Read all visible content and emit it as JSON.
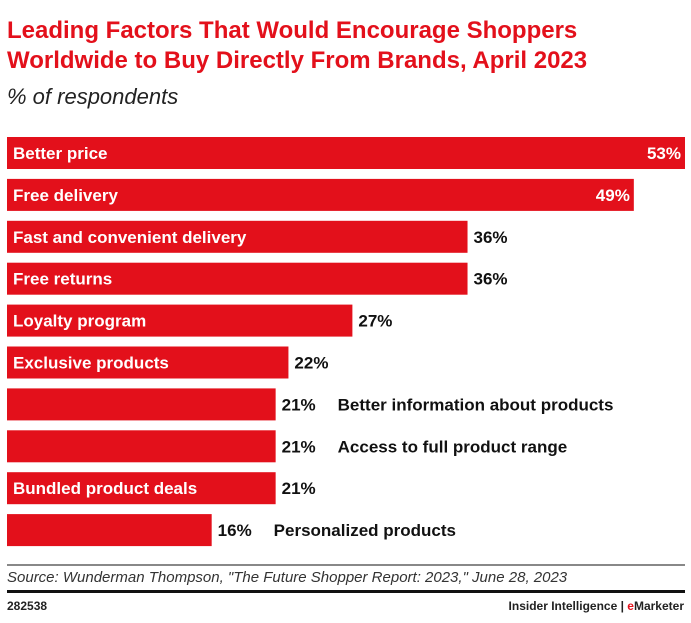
{
  "chart_data": {
    "type": "bar",
    "orientation": "horizontal",
    "title": "Leading Factors That Would Encourage Shoppers Worldwide to Buy Directly From Brands, April 2023",
    "subtitle": "% of respondents",
    "categories": [
      "Better price",
      "Free delivery",
      "Fast and convenient delivery",
      "Free returns",
      "Loyalty program",
      "Exclusive products",
      "Better information about products",
      "Access to full product range",
      "Bundled product deals",
      "Personalized products"
    ],
    "values": [
      53,
      49,
      36,
      36,
      27,
      22,
      21,
      21,
      21,
      16
    ],
    "value_suffix": "%",
    "xlim": [
      0,
      53
    ],
    "grid": false,
    "bar_color": "#e3101b"
  },
  "footer": {
    "source": "Source: Wunderman Thompson, \"The Future Shopper Report: 2023,\" June 28, 2023",
    "chart_id": "282538",
    "brand_left": "Insider Intelligence | ",
    "brand_e": "e",
    "brand_right": "Marketer"
  }
}
